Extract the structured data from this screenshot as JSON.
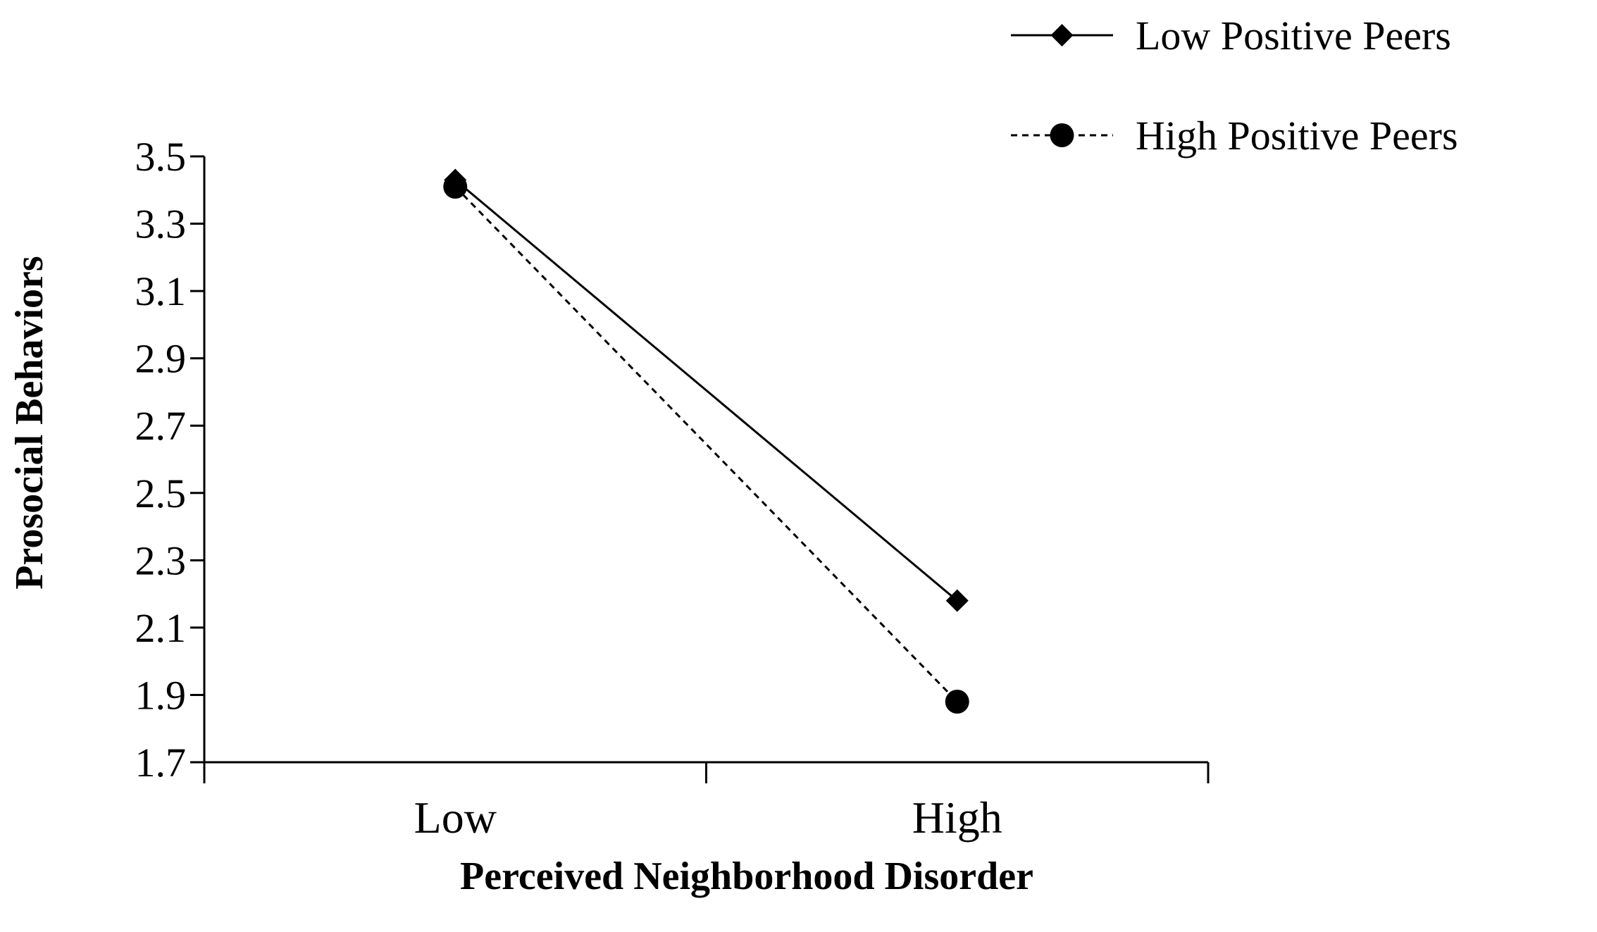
{
  "chart_data": {
    "type": "line",
    "categories": [
      "Low",
      "High"
    ],
    "series": [
      {
        "name": "Low Positive Peers",
        "values": [
          3.43,
          2.18
        ],
        "line_style": "solid",
        "marker": "diamond",
        "color": "#000000"
      },
      {
        "name": "High Positive Peers",
        "values": [
          3.41,
          1.88
        ],
        "line_style": "dashed",
        "marker": "circle",
        "color": "#000000"
      }
    ],
    "xlabel": "Perceived Neighborhood Disorder",
    "ylabel": "Prosocial Behaviors",
    "ylim": [
      1.7,
      3.5
    ],
    "yticks": [
      "1.7",
      "1.9",
      "2.1",
      "2.3",
      "2.5",
      "2.7",
      "2.9",
      "3.1",
      "3.3",
      "3.5"
    ],
    "grid": false,
    "legend_position": "top-right"
  }
}
